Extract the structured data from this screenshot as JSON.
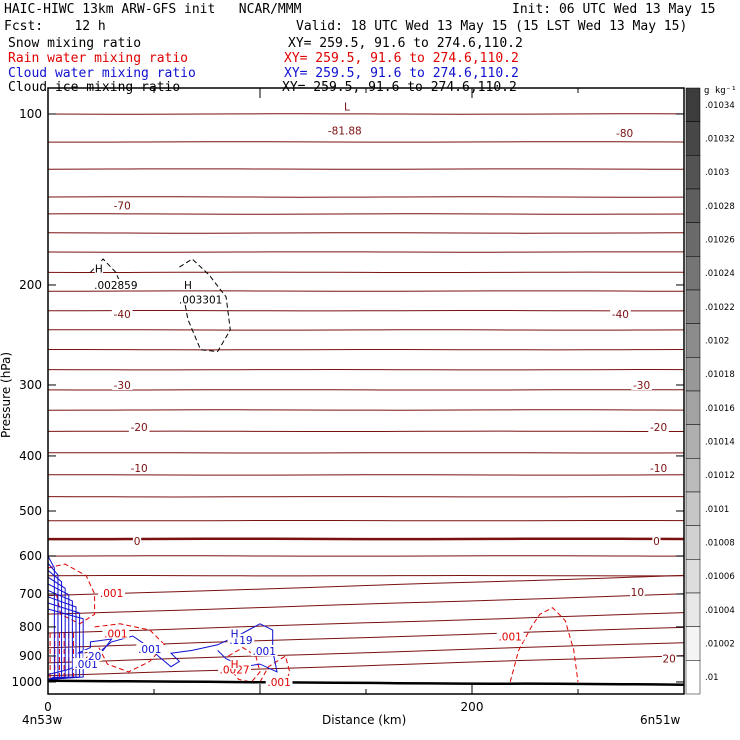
{
  "header": {
    "title": "HAIC-HIWC 13km ARW-GFS init   NCAR/MMM",
    "init": "Init: 06 UTC Wed 13 May 15",
    "fcst": "Fcst:    12 h",
    "valid": "Valid: 18 UTC Wed 13 May 15 (15 LST Wed 13 May 15)",
    "fields": [
      {
        "name": "Snow mixing ratio",
        "xy": "XY= 259.5, 91.6 to 274.6,110.2",
        "color": "#000000"
      },
      {
        "name": "Rain water mixing ratio",
        "xy": "XY= 259.5, 91.6 to 274.6,110.2",
        "color": "#e00000"
      },
      {
        "name": "Cloud water mixing ratio",
        "xy": "XY= 259.5, 91.6 to 274.6,110.2",
        "color": "#1010d0"
      },
      {
        "name": "Cloud ice mixing ratio",
        "xy": "XY= 259.5, 91.6 to 274.6,110.2",
        "color": "#000000"
      }
    ]
  },
  "axes": {
    "ylabel": "Pressure (hPa)",
    "xlabel": "Distance (km)",
    "left_end": "4n53w",
    "right_end": "6n51w"
  },
  "colorbar": {
    "units": "g kg⁻¹",
    "labels": [
      ".01034",
      ".01032",
      ".0103",
      ".01028",
      ".01026",
      ".01024",
      ".01022",
      ".0102",
      ".01018",
      ".01016",
      ".01014",
      ".01012",
      ".0101",
      ".01008",
      ".01006",
      ".01004",
      ".01002",
      ".01"
    ]
  },
  "colors": {
    "temperature": "#7a1010",
    "rain": "#e00000",
    "cloud_water": "#1010d0",
    "ground": "#000000"
  },
  "chart_data": {
    "type": "contour",
    "x_range_km": [
      0,
      300
    ],
    "x_ticks": [
      0,
      200
    ],
    "y_scale": "log",
    "y_range_hpa": [
      1050,
      90
    ],
    "y_ticks": [
      100,
      200,
      300,
      400,
      500,
      600,
      700,
      800,
      900,
      1000
    ],
    "temperature_labels": [
      {
        "text": "-81.88",
        "x": 140,
        "p": 107
      },
      {
        "text": "L",
        "x": 141,
        "p": 97
      },
      {
        "text": "-80",
        "x": 272,
        "p": 108
      },
      {
        "text": "-70",
        "x": 35,
        "p": 145
      },
      {
        "text": "-40",
        "x": 35,
        "p": 225
      },
      {
        "text": "-40",
        "x": 270,
        "p": 225
      },
      {
        "text": "-30",
        "x": 35,
        "p": 300
      },
      {
        "text": "-30",
        "x": 280,
        "p": 300
      },
      {
        "text": "-20",
        "x": 43,
        "p": 356
      },
      {
        "text": "-20",
        "x": 288,
        "p": 356
      },
      {
        "text": "-10",
        "x": 43,
        "p": 420
      },
      {
        "text": "-10",
        "x": 288,
        "p": 420
      },
      {
        "text": "0",
        "x": 42,
        "p": 565
      },
      {
        "text": "0",
        "x": 287,
        "p": 565
      },
      {
        "text": "10",
        "x": 278,
        "p": 695
      },
      {
        "text": "20",
        "x": 20,
        "p": 900
      },
      {
        "text": "20",
        "x": 293,
        "p": 910
      }
    ],
    "rain_labels": [
      {
        "text": ".001",
        "x": 30,
        "p": 697
      },
      {
        "text": ".001",
        "x": 32,
        "p": 822
      },
      {
        "text": ".001",
        "x": 218,
        "p": 832
      },
      {
        "text": ".0027",
        "x": 88,
        "p": 950
      },
      {
        "text": ".001",
        "x": 109,
        "p": 1000
      },
      {
        "text": "H",
        "x": 88,
        "p": 930
      }
    ],
    "cloud_water_labels": [
      {
        "text": ".001",
        "x": 18,
        "p": 930
      },
      {
        "text": ".001",
        "x": 48,
        "p": 875
      },
      {
        "text": ".001",
        "x": 102,
        "p": 882
      },
      {
        "text": ".119",
        "x": 91,
        "p": 843
      },
      {
        "text": "H",
        "x": 88,
        "p": 822
      },
      {
        "text": "20",
        "x": 22,
        "p": 900
      }
    ],
    "snow_labels": [
      {
        "text": "H",
        "x": 24,
        "p": 187
      },
      {
        "text": ".002859",
        "x": 32,
        "p": 200
      },
      {
        "text": "H",
        "x": 66,
        "p": 200
      },
      {
        "text": ".003301",
        "x": 72,
        "p": 212
      }
    ]
  }
}
